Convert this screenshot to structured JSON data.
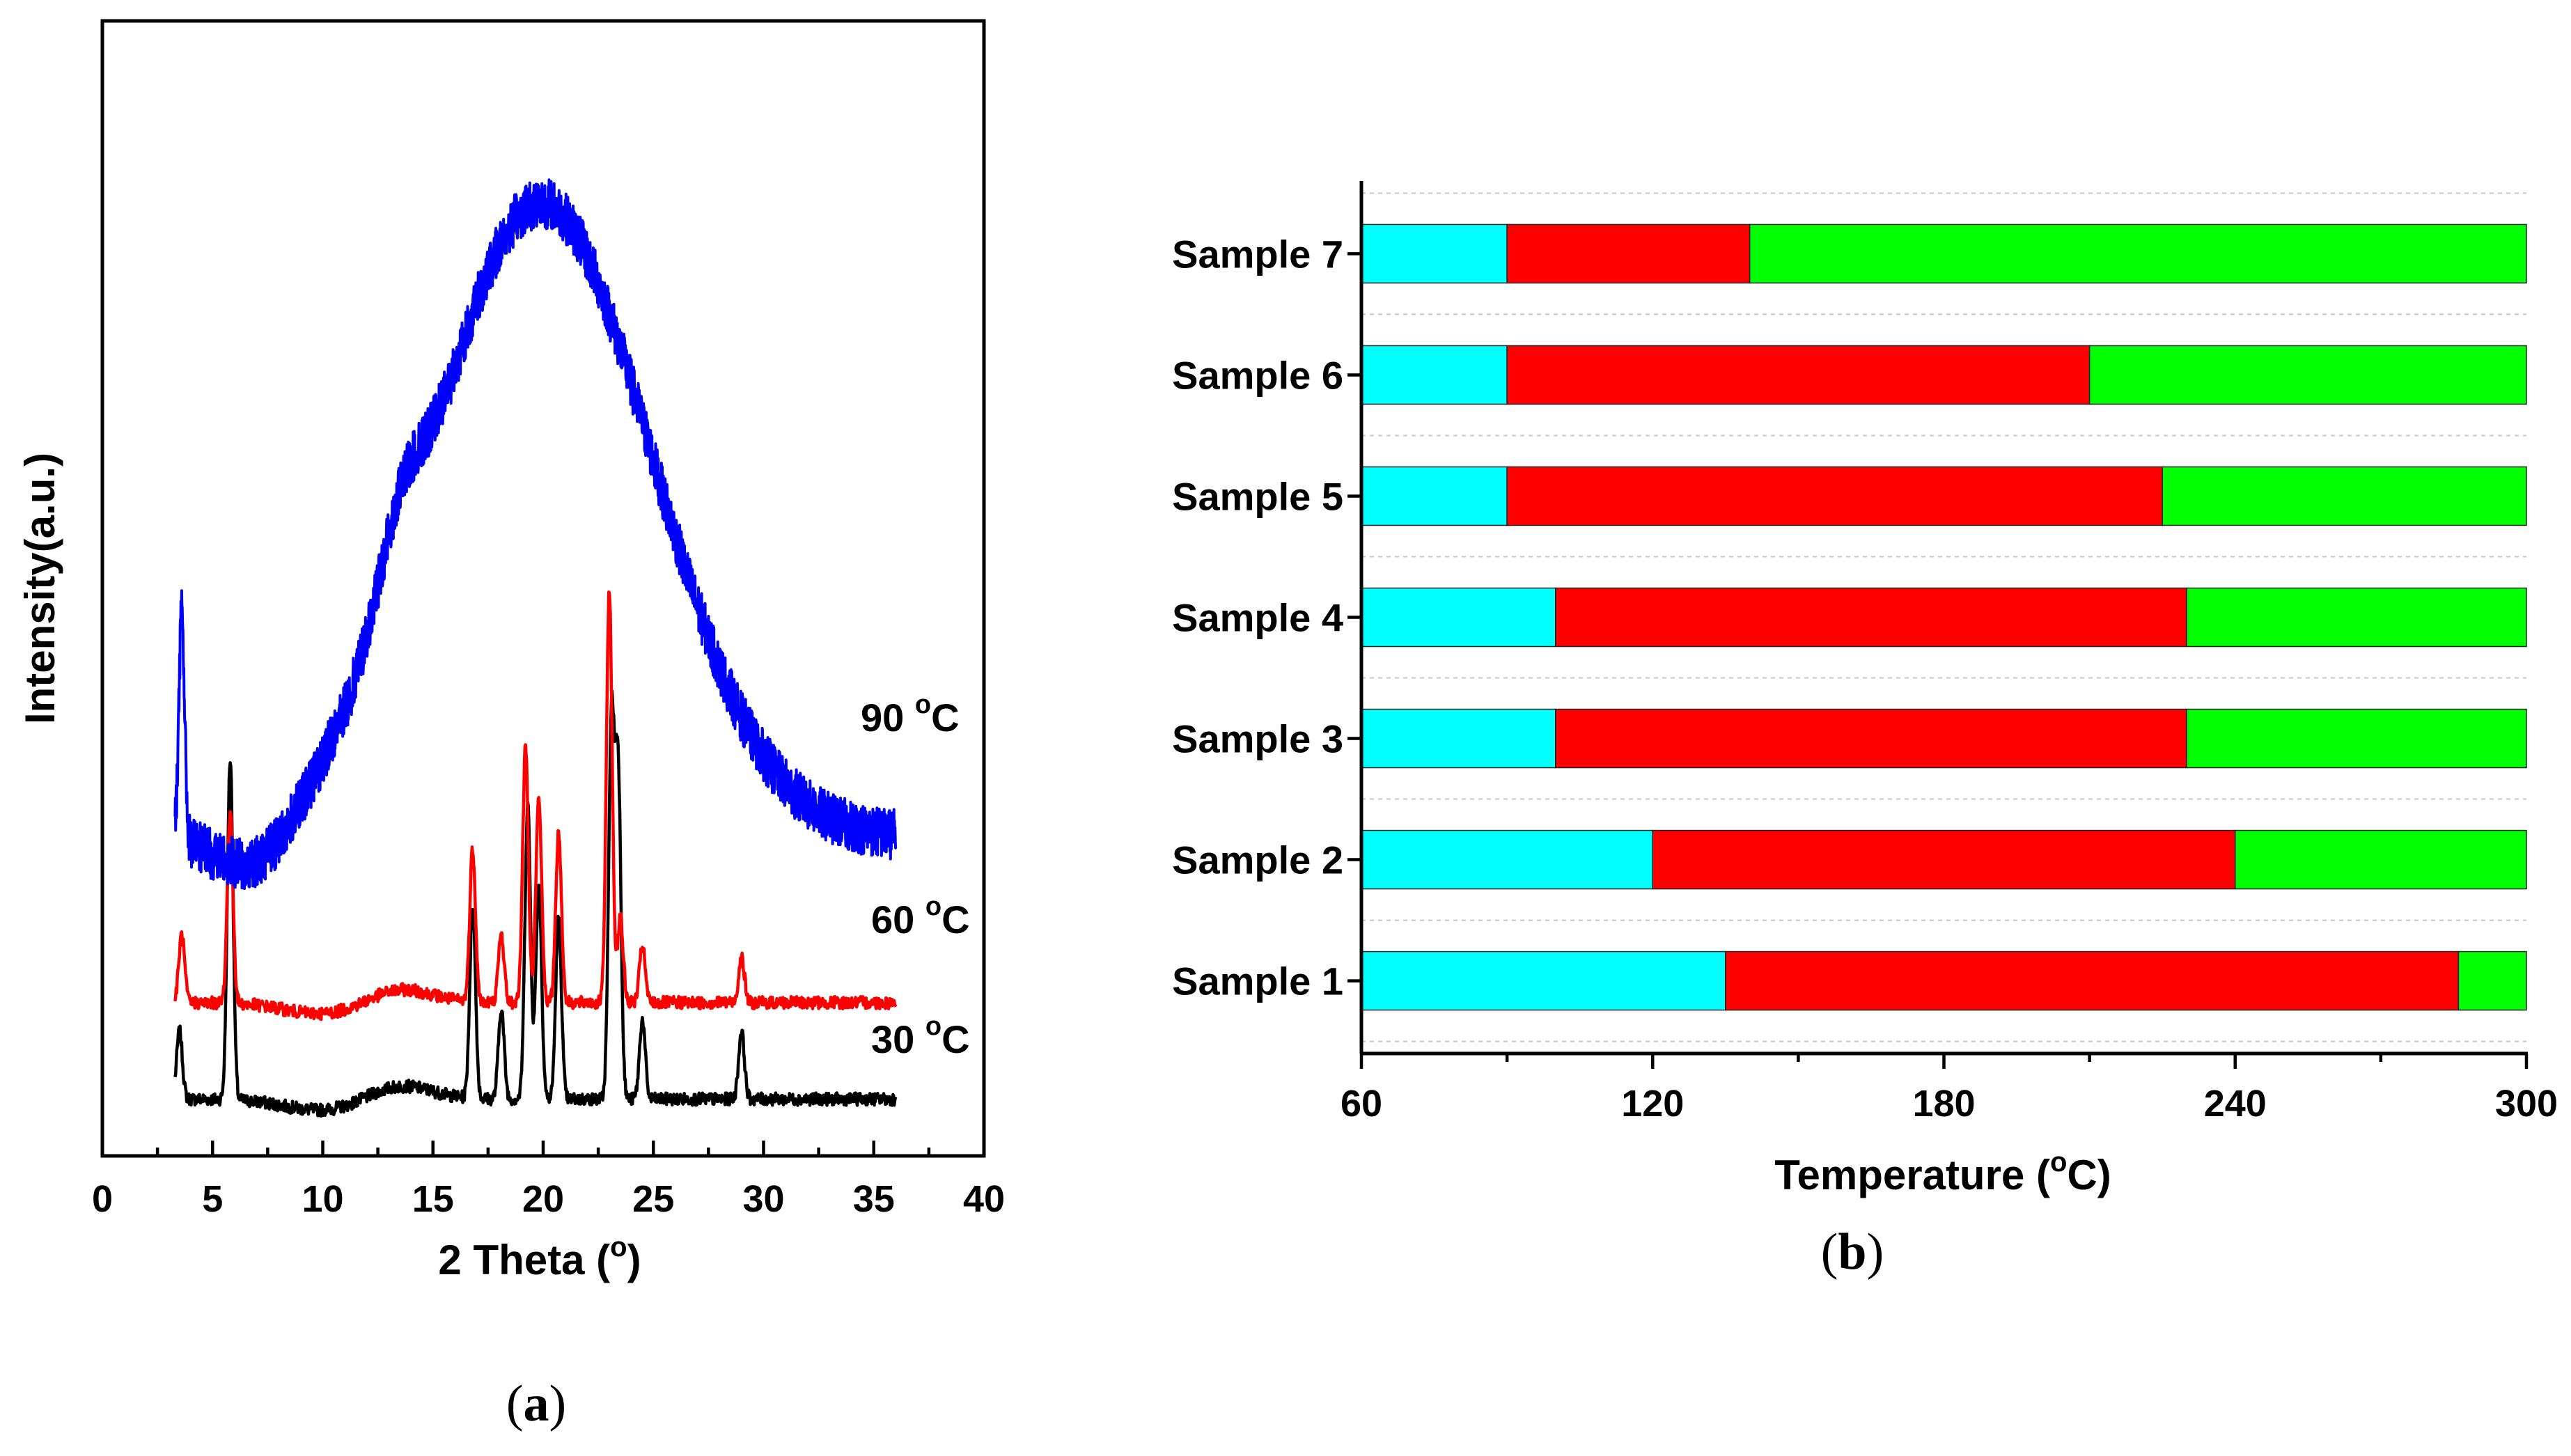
{
  "chart_data": [
    {
      "type": "line",
      "panel_label": "a",
      "title": "",
      "xlabel": "2 Theta (°)",
      "xlabel_main": "2 Theta (",
      "xlabel_unit": "o",
      "xlabel_close": ")",
      "ylabel": "Intensity(a.u.)",
      "xlim": [
        0,
        40
      ],
      "x_ticks": [
        "0",
        "5",
        "10",
        "15",
        "20",
        "25",
        "30",
        "35",
        "40"
      ],
      "y_ticks_visible": false,
      "x_range": [
        3.3,
        36
      ],
      "series": [
        {
          "name": "30 °C",
          "label_main": "30 ",
          "label_sup": "o",
          "label_unit": "C",
          "color": "#000000",
          "baseline": 10,
          "peaks": [
            {
              "x": 3.5,
              "h": 12
            },
            {
              "x": 5.8,
              "h": 60
            },
            {
              "x": 16.8,
              "h": 34
            },
            {
              "x": 18.1,
              "h": 16
            },
            {
              "x": 19.3,
              "h": 52
            },
            {
              "x": 19.8,
              "h": 38
            },
            {
              "x": 20.7,
              "h": 32
            },
            {
              "x": 23.1,
              "h": 66
            },
            {
              "x": 23.4,
              "h": 58
            },
            {
              "x": 24.5,
              "h": 14
            },
            {
              "x": 29.0,
              "h": 12
            }
          ]
        },
        {
          "name": "60 °C",
          "label_main": "60 ",
          "label_sup": "o",
          "label_unit": "C",
          "color": "#ff0000",
          "baseline": 27,
          "peaks": [
            {
              "x": 3.6,
              "h": 12
            },
            {
              "x": 5.8,
              "h": 34
            },
            {
              "x": 16.8,
              "h": 27
            },
            {
              "x": 18.1,
              "h": 12
            },
            {
              "x": 19.2,
              "h": 45
            },
            {
              "x": 19.8,
              "h": 36
            },
            {
              "x": 20.7,
              "h": 30
            },
            {
              "x": 23.0,
              "h": 73
            },
            {
              "x": 23.5,
              "h": 15
            },
            {
              "x": 24.5,
              "h": 10
            },
            {
              "x": 29.0,
              "h": 8
            }
          ]
        },
        {
          "name": "90 °C",
          "label_main": "90 ",
          "label_sup": "o",
          "label_unit": "C",
          "color": "#0000ff",
          "baseline": 56,
          "hump_center": 19.9,
          "hump_height": 112,
          "peaks": [
            {
              "x": 3.6,
              "h": 40
            }
          ]
        }
      ]
    },
    {
      "type": "bar",
      "orientation": "horizontal",
      "stacked": true,
      "panel_label": "b",
      "title": "",
      "xlabel": "Temperature (°C)",
      "xlabel_main": "Temperature (",
      "xlabel_unit": "o",
      "xlabel_close": "C)",
      "ylabel": "",
      "xlim": [
        60,
        300
      ],
      "x_ticks": [
        "60",
        "120",
        "180",
        "240",
        "300"
      ],
      "categories": [
        "Sample 7",
        "Sample 6",
        "Sample 5",
        "Sample 4",
        "Sample 3",
        "Sample 2",
        "Sample 1"
      ],
      "segments": [
        {
          "name": "cyan",
          "color": "#00ffff",
          "ranges": [
            [
              60,
              90
            ],
            [
              60,
              90
            ],
            [
              60,
              90
            ],
            [
              60,
              100
            ],
            [
              60,
              100
            ],
            [
              60,
              120
            ],
            [
              60,
              135
            ]
          ]
        },
        {
          "name": "red",
          "color": "#ff0000",
          "ranges": [
            [
              90,
              140
            ],
            [
              90,
              210
            ],
            [
              90,
              225
            ],
            [
              100,
              230
            ],
            [
              100,
              230
            ],
            [
              120,
              240
            ],
            [
              135,
              286
            ]
          ]
        },
        {
          "name": "green",
          "color": "#00ff00",
          "ranges": [
            [
              140,
              300
            ],
            [
              210,
              300
            ],
            [
              225,
              300
            ],
            [
              230,
              300
            ],
            [
              230,
              300
            ],
            [
              240,
              300
            ],
            [
              286,
              300
            ]
          ]
        }
      ]
    }
  ]
}
